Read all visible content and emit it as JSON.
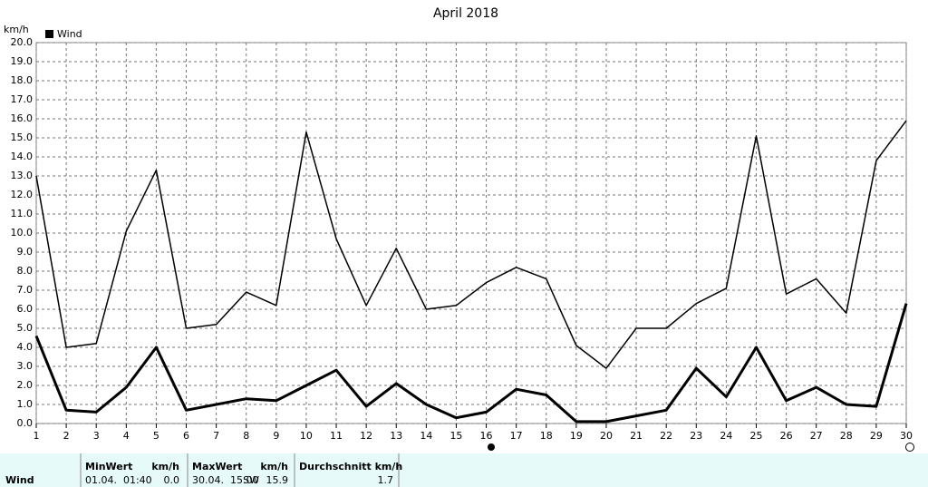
{
  "chart_data": {
    "type": "line",
    "title": "April 2018",
    "y_unit": "km/h",
    "x": [
      1,
      2,
      3,
      4,
      5,
      6,
      7,
      8,
      9,
      10,
      11,
      12,
      13,
      14,
      15,
      16,
      17,
      18,
      19,
      20,
      21,
      22,
      23,
      24,
      25,
      26,
      27,
      28,
      29,
      30
    ],
    "xlim": [
      1,
      30
    ],
    "xticks": [
      1,
      2,
      3,
      4,
      5,
      6,
      7,
      8,
      9,
      10,
      11,
      12,
      13,
      14,
      15,
      16,
      17,
      18,
      19,
      20,
      21,
      22,
      23,
      24,
      25,
      26,
      27,
      28,
      29,
      30
    ],
    "ylim": [
      0,
      20
    ],
    "yticks": [
      {
        "value": 0,
        "label": "0.0"
      },
      {
        "value": 1,
        "label": "1.0"
      },
      {
        "value": 2,
        "label": "2.0"
      },
      {
        "value": 3,
        "label": "3.0"
      },
      {
        "value": 4,
        "label": "4.0"
      },
      {
        "value": 5,
        "label": "5.0"
      },
      {
        "value": 6,
        "label": "6.0"
      },
      {
        "value": 7,
        "label": "7.0"
      },
      {
        "value": 8,
        "label": "8.0"
      },
      {
        "value": 9,
        "label": "9.0"
      },
      {
        "value": 10,
        "label": "10.0"
      },
      {
        "value": 11,
        "label": "11.0"
      },
      {
        "value": 12,
        "label": "12.0"
      },
      {
        "value": 13,
        "label": "13.0"
      },
      {
        "value": 14,
        "label": "14.0"
      },
      {
        "value": 15,
        "label": "15.0"
      },
      {
        "value": 16,
        "label": "16.0"
      },
      {
        "value": 17,
        "label": "17.0"
      },
      {
        "value": 18,
        "label": "18.0"
      },
      {
        "value": 19,
        "label": "19.0"
      },
      {
        "value": 20,
        "label": "20.0"
      }
    ],
    "grid": true,
    "series": [
      {
        "name": "Wind",
        "color": "#000000",
        "width": 3,
        "values": [
          4.6,
          0.7,
          0.6,
          1.9,
          4.0,
          0.7,
          1.0,
          1.3,
          1.2,
          2.0,
          2.8,
          0.9,
          2.1,
          1.0,
          0.3,
          0.6,
          1.8,
          1.5,
          0.1,
          0.1,
          0.4,
          0.7,
          2.9,
          1.4,
          4.0,
          1.2,
          1.9,
          1.0,
          0.9,
          6.3
        ]
      },
      {
        "color": "#000000",
        "width": 1.5,
        "values": [
          13.0,
          4.0,
          4.2,
          10.1,
          13.3,
          5.0,
          5.2,
          6.9,
          6.2,
          15.3,
          9.7,
          6.2,
          9.2,
          6.0,
          6.2,
          7.4,
          8.2,
          7.6,
          4.1,
          2.9,
          5.0,
          5.0,
          6.3,
          7.1,
          15.1,
          6.8,
          7.6,
          5.8,
          13.8,
          15.9
        ]
      }
    ]
  },
  "summary": {
    "row_label": "Wind",
    "min_header": "MinWert",
    "min_unit": "km/h",
    "min_time": "01.04.  01:40",
    "min_value": "0.0",
    "max_header": "MaxWert",
    "max_unit": "km/h",
    "max_time": "30.04.  15:00",
    "max_dir": "SW",
    "max_value": "15.9",
    "avg_header": "Durchschnitt km/h",
    "avg_value": "1.7"
  }
}
